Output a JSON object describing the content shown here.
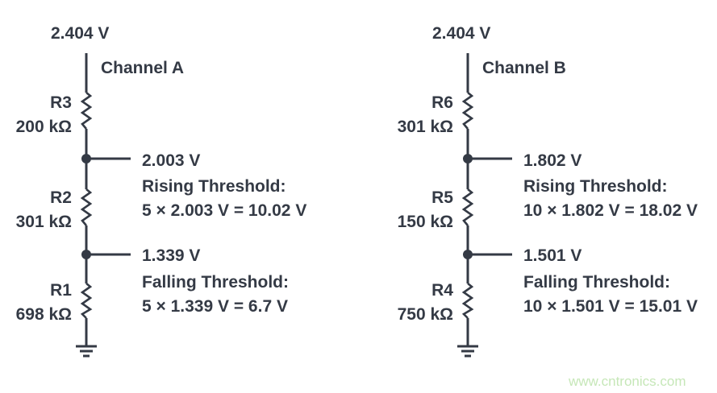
{
  "channels": [
    {
      "supply": "2.404 V",
      "name": "Channel A",
      "resistors": [
        {
          "ref": "R3",
          "value": "200 kΩ"
        },
        {
          "ref": "R2",
          "value": "301 kΩ"
        },
        {
          "ref": "R1",
          "value": "698 kΩ"
        }
      ],
      "upper_node": {
        "voltage": "2.003 V",
        "label": "Rising Threshold:",
        "formula": "5 × 2.003 V = 10.02 V"
      },
      "lower_node": {
        "voltage": "1.339 V",
        "label": "Falling Threshold:",
        "formula": "5 × 1.339 V = 6.7 V"
      }
    },
    {
      "supply": "2.404 V",
      "name": "Channel B",
      "resistors": [
        {
          "ref": "R6",
          "value": "301 kΩ"
        },
        {
          "ref": "R5",
          "value": "150 kΩ"
        },
        {
          "ref": "R4",
          "value": "750 kΩ"
        }
      ],
      "upper_node": {
        "voltage": "1.802 V",
        "label": "Rising Threshold:",
        "formula": "10 × 1.802 V = 18.02 V"
      },
      "lower_node": {
        "voltage": "1.501 V",
        "label": "Falling Threshold:",
        "formula": "10 × 1.501 V = 15.01 V"
      }
    }
  ],
  "watermark": "www.cntronics.com",
  "colors": {
    "ink": "#343a45",
    "watermark": "#c6e7b8"
  }
}
